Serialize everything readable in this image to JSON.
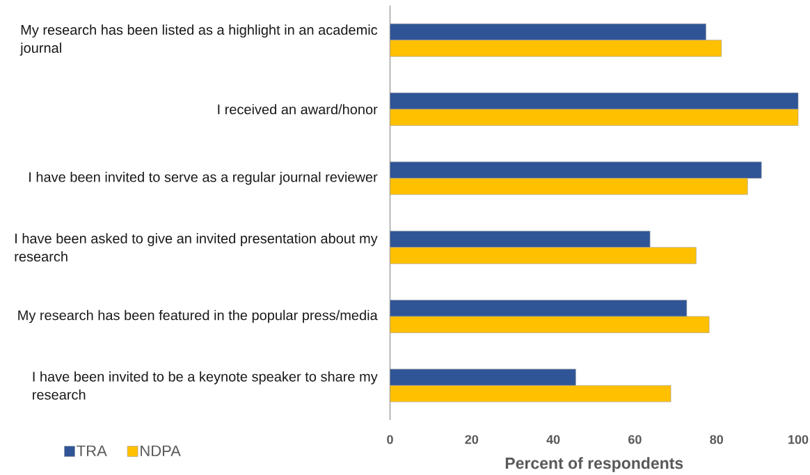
{
  "chart_data": {
    "type": "bar",
    "orientation": "horizontal",
    "categories": [
      "My research has been listed as a highlight in an academic journal",
      "I received an award/honor",
      "I have been invited to serve as a regular journal reviewer",
      "I have been asked to give an invited presentation about my research",
      "My research has been featured in the popular press/media",
      "I have been invited to be a keynote speaker to share my research"
    ],
    "series": [
      {
        "name": "TRA",
        "color": "#2f5597",
        "values": [
          77.4,
          100,
          91.0,
          63.7,
          72.7,
          45.5
        ]
      },
      {
        "name": "NDPA",
        "color": "#ffc000",
        "values": [
          81.2,
          100,
          87.6,
          75.0,
          78.2,
          68.8
        ]
      }
    ],
    "xlabel": "Percent of respondents",
    "xlim": [
      0,
      100
    ],
    "xticks": [
      0,
      20,
      40,
      60,
      80,
      100
    ],
    "legend": "bottom left"
  }
}
